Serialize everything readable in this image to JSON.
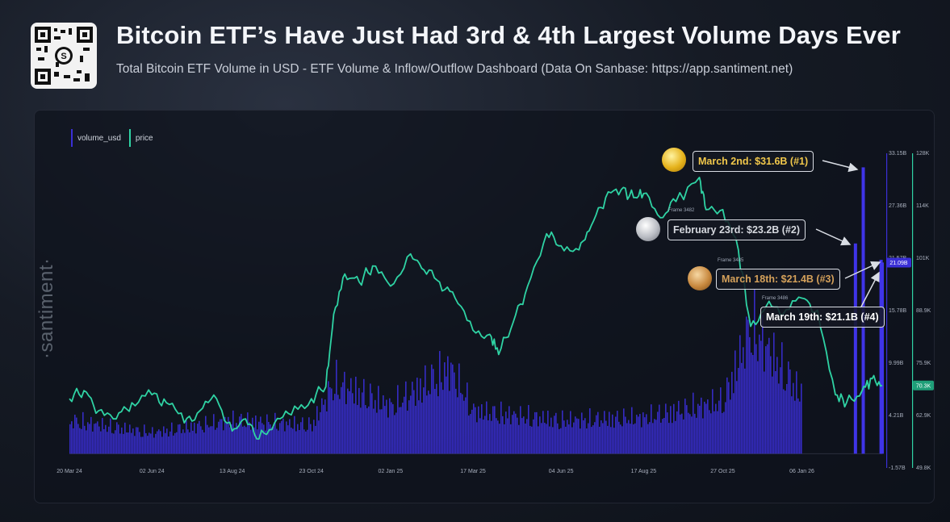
{
  "header": {
    "title": "Bitcoin ETF’s Have Just Had 3rd & 4th Largest Volume Days Ever",
    "subtitle": "Total Bitcoin ETF Volume in USD - ETF Volume & Inflow/Outflow Dashboard (Data On Sanbase: https://app.santiment.net)"
  },
  "watermark": "·santiment·",
  "legend": [
    {
      "name": "volume_usd",
      "color": "#3a2fd6"
    },
    {
      "name": "price",
      "color": "#2fd3a4"
    }
  ],
  "callouts": [
    {
      "text": "March 2nd: $31.6B (#1)",
      "color": "#f2c84b",
      "coin": "gold"
    },
    {
      "text": "February 23rd: $23.2B (#2)",
      "color": "#d6d9df",
      "coin": "silver"
    },
    {
      "text": "March 18th: $21.4B (#3)",
      "color": "#d4a05a",
      "coin": "bronze"
    },
    {
      "text": "March 19th: $21.1B (#4)",
      "color": "#ffffff",
      "coin": "none"
    }
  ],
  "frame_labels": [
    "Frame 3482",
    "Frame 3485",
    "Frame 3486"
  ],
  "chart_data": {
    "type": "line",
    "x_ticks": [
      "20 Mar 24",
      "02 Jun 24",
      "13 Aug 24",
      "23 Oct 24",
      "02 Jan 25",
      "17 Mar 25",
      "04 Jun 25",
      "17 Aug 25",
      "27 Oct 25",
      "06 Jan 26"
    ],
    "volume_axis": {
      "ticks": [
        "33.15B",
        "27.36B",
        "21.57B",
        "15.78B",
        "9.99B",
        "4.21B",
        "-1.57B"
      ],
      "current": "21.09B",
      "color": "#3a2fd6"
    },
    "price_axis": {
      "ticks": [
        "128K",
        "114K",
        "101K",
        "88.9K",
        "75.9K",
        "62.9K",
        "49.8K"
      ],
      "current": "70.3K",
      "color": "#2fd3a4"
    },
    "series": [
      {
        "name": "price",
        "x": [
          "20 Mar 24",
          "02 Apr 24",
          "15 Apr 24",
          "01 May 24",
          "15 May 24",
          "02 Jun 24",
          "15 Jun 24",
          "01 Jul 24",
          "15 Jul 24",
          "30 Jul 24",
          "13 Aug 24",
          "25 Aug 24",
          "06 Sep 24",
          "20 Sep 24",
          "05 Oct 24",
          "23 Oct 24",
          "05 Nov 24",
          "12 Nov 24",
          "22 Nov 24",
          "05 Dec 24",
          "17 Dec 24",
          "02 Jan 25",
          "20 Jan 25",
          "01 Feb 25",
          "15 Feb 25",
          "01 Mar 25",
          "17 Mar 25",
          "01 Apr 25",
          "09 Apr 25",
          "22 Apr 25",
          "05 May 25",
          "22 May 25",
          "04 Jun 25",
          "20 Jun 25",
          "01 Jul 25",
          "14 Jul 25",
          "28 Jul 25",
          "08 Aug 25",
          "17 Aug 25",
          "01 Sep 25",
          "15 Sep 25",
          "06 Oct 25",
          "12 Oct 25",
          "27 Oct 25",
          "10 Nov 25",
          "21 Nov 25",
          "05 Dec 25",
          "20 Dec 25",
          "06 Jan 26",
          "20 Jan 26",
          "05 Feb 26",
          "15 Feb 26",
          "01 Mar 26",
          "10 Mar 26",
          "19 Mar 26"
        ],
        "values": [
          67,
          69,
          64,
          62,
          66,
          68,
          66,
          61,
          64,
          67,
          59,
          62,
          57,
          61,
          63,
          67,
          70,
          88,
          98,
          96,
          100,
          95,
          103,
          99,
          96,
          92,
          84,
          83,
          78,
          86,
          95,
          108,
          105,
          104,
          110,
          117,
          119,
          117,
          118,
          112,
          116,
          122,
          114,
          114,
          104,
          85,
          90,
          88,
          92,
          89,
          68,
          66,
          69,
          72,
          70.3
        ]
      },
      {
        "name": "volume_usd",
        "x": [
          "20 Mar 24",
          "15 May 24",
          "02 Jun 24",
          "13 Aug 24",
          "23 Oct 24",
          "12 Nov 24",
          "02 Jan 25",
          "24 Feb 25",
          "17 Mar 25",
          "04 Jun 25",
          "17 Aug 25",
          "27 Oct 25",
          "21 Nov 25",
          "06 Jan 26",
          "23 Feb 26",
          "02 Mar 26",
          "18 Mar 26",
          "19 Mar 26"
        ],
        "values": [
          3.5,
          2.5,
          2.2,
          3.5,
          3.0,
          7.5,
          5.0,
          9.0,
          4.5,
          3.5,
          3.8,
          5.5,
          13.5,
          6.0,
          23.2,
          31.6,
          21.4,
          21.1
        ]
      }
    ]
  }
}
